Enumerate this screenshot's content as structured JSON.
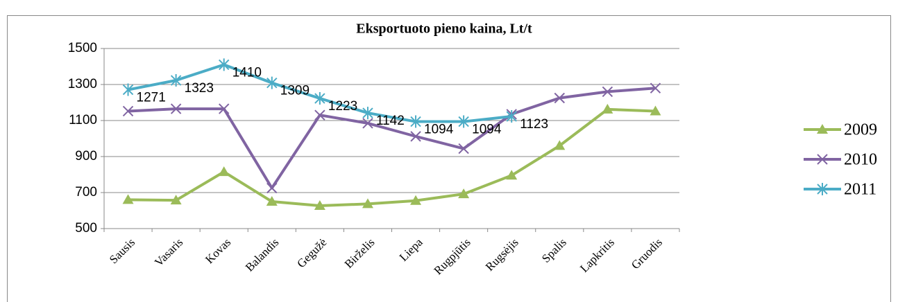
{
  "chart_data": {
    "type": "line",
    "title": "Eksportuoto pieno kaina, Lt/t",
    "categories": [
      "Sausis",
      "Vasaris",
      "Kovas",
      "Balandis",
      "Gegužė",
      "Birželis",
      "Liepa",
      "Rugpjūtis",
      "Rugsėjis",
      "Spalis",
      "Lapkritis",
      "Gruodis"
    ],
    "series": [
      {
        "name": "2009",
        "color": "#9bbb59",
        "marker": "triangle",
        "values": [
          660,
          657,
          815,
          650,
          627,
          637,
          655,
          692,
          795,
          960,
          1162,
          1152
        ]
      },
      {
        "name": "2010",
        "color": "#8064a2",
        "marker": "x",
        "values": [
          1152,
          1165,
          1165,
          725,
          1130,
          1085,
          1012,
          944,
          1135,
          1225,
          1260,
          1280
        ]
      },
      {
        "name": "2011",
        "color": "#4bacc6",
        "marker": "asterisk",
        "show_labels": true,
        "values": [
          1271,
          1323,
          1410,
          1309,
          1223,
          1142,
          1094,
          1094,
          1123,
          null,
          null,
          null
        ]
      }
    ],
    "ylim": [
      500,
      1500
    ],
    "yticks": [
      500,
      700,
      900,
      1100,
      1300,
      1500
    ],
    "grid": true,
    "legend": "right"
  }
}
